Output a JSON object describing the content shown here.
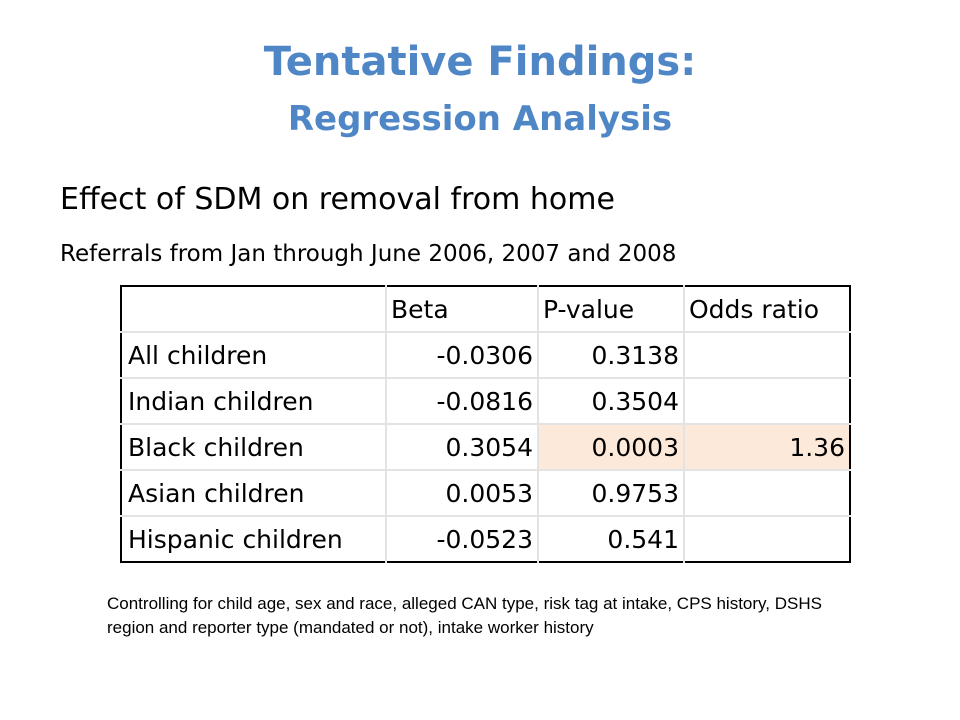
{
  "slide": {
    "title": "Tentative Findings:",
    "subtitle": "Regression Analysis",
    "heading": "Effect of SDM on removal from home",
    "subheading": "Referrals from Jan through June 2006, 2007 and 2008",
    "note": "Controlling for child age, sex and race, alleged CAN type, risk tag at intake, CPS history, DSHS region and reporter type (mandated or not), intake worker history"
  },
  "table": {
    "headers": [
      "",
      "Beta",
      "P-value",
      "Odds ratio"
    ],
    "rows": [
      {
        "label": "All children",
        "beta": "-0.0306",
        "pvalue": "0.3138",
        "odds": ""
      },
      {
        "label": "Indian children",
        "beta": "-0.0816",
        "pvalue": "0.3504",
        "odds": ""
      },
      {
        "label": "Black children",
        "beta": "0.3054",
        "pvalue": "0.0003",
        "odds": "1.36"
      },
      {
        "label": "Asian children",
        "beta": "0.0053",
        "pvalue": "0.9753",
        "odds": ""
      },
      {
        "label": "Hispanic children",
        "beta": "-0.0523",
        "pvalue": "0.541",
        "odds": ""
      }
    ],
    "highlight_color": "#fde9d9"
  }
}
